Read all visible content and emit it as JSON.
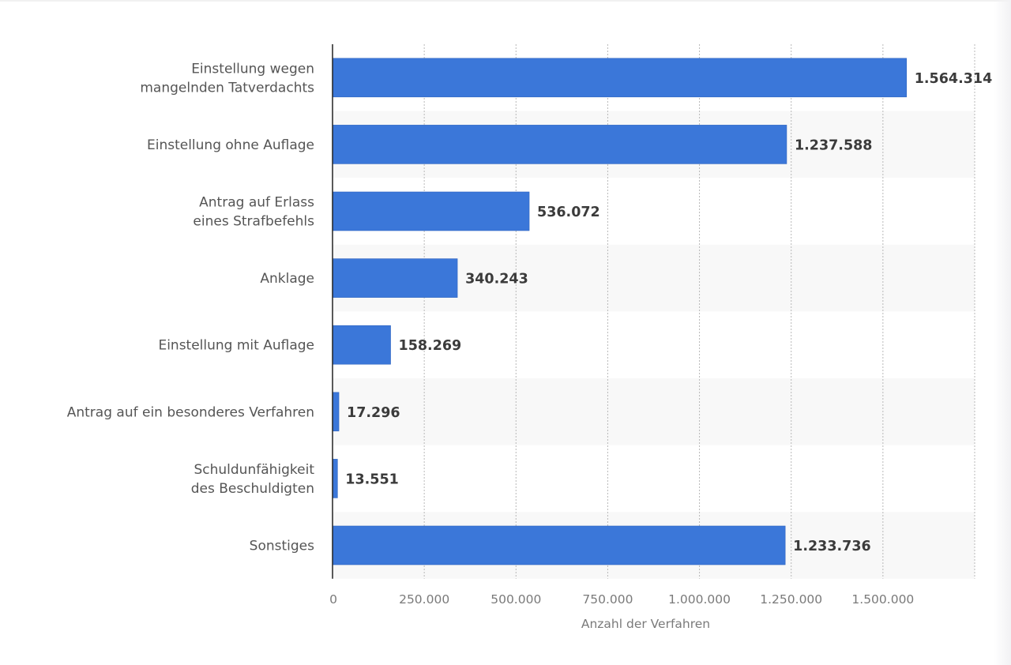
{
  "chart_data": {
    "type": "bar",
    "orientation": "horizontal",
    "title": "",
    "xlabel": "Anzahl der Verfahren",
    "ylabel": "",
    "xlim": [
      0,
      1750000
    ],
    "grid": true,
    "legend": "none",
    "bar_color": "#3b77d9",
    "categories": [
      [
        "Einstellung wegen",
        "mangelnden Tatverdachts"
      ],
      [
        "Einstellung ohne Auflage"
      ],
      [
        "Antrag auf Erlass",
        "eines Strafbefehls"
      ],
      [
        "Anklage"
      ],
      [
        "Einstellung mit Auflage"
      ],
      [
        "Antrag auf ein besonderes Verfahren"
      ],
      [
        "Schuldunfähigkeit",
        "des Beschuldigten"
      ],
      [
        "Sonstiges"
      ]
    ],
    "values": [
      1564314,
      1237588,
      536072,
      340243,
      158269,
      17296,
      13551,
      1233736
    ],
    "value_labels": [
      "1.564.314",
      "1.237.588",
      "536.072",
      "340.243",
      "158.269",
      "17.296",
      "13.551",
      "1.233.736"
    ],
    "x_ticks": [
      0,
      250000,
      500000,
      750000,
      1000000,
      1250000,
      1500000,
      1750000
    ],
    "x_tick_labels": [
      "0",
      "250.000",
      "500.000",
      "750.000",
      "1.000.000",
      "1.250.000",
      "1.500.000",
      ""
    ]
  }
}
